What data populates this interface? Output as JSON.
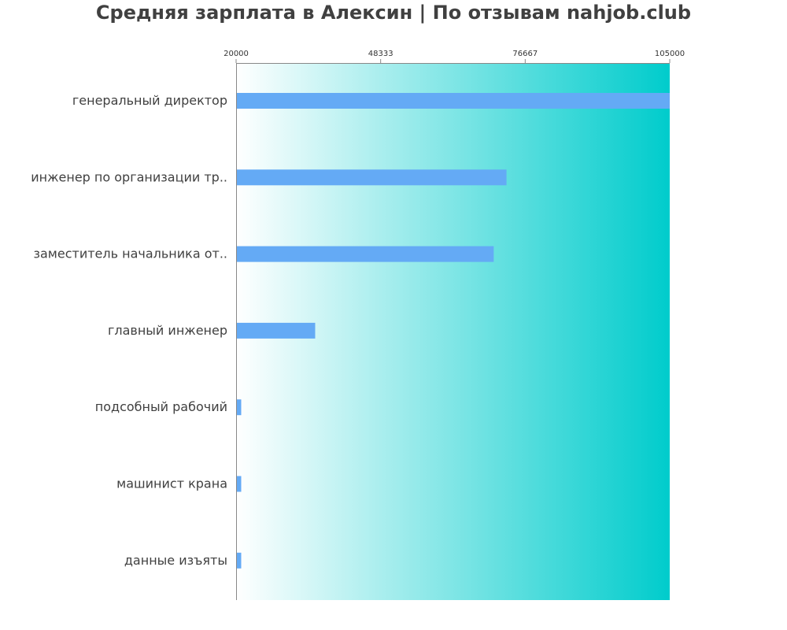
{
  "colors": {
    "bar": "#64aaf5",
    "gradient_start": "#ffffff",
    "gradient_end": "#00cccc",
    "axis": "#888888",
    "title": "#404040"
  },
  "chart_data": {
    "type": "bar",
    "orientation": "horizontal",
    "title": "Средняя зарплата в Алексин | По отзывам nahjob.club",
    "xlabel": "",
    "ylabel": "",
    "xlim": [
      20000,
      105000
    ],
    "x_ticks": [
      "20000",
      "48333",
      "76667",
      "105000"
    ],
    "grid": false,
    "legend": "none",
    "categories": [
      "генеральный директор",
      "инженер по организации тр..",
      "заместитель начальника от..",
      "главный инженер",
      "подсобный рабочий",
      "машинист крана",
      "данные изъяты"
    ],
    "values": [
      105000,
      73000,
      70500,
      35500,
      21000,
      21000,
      21000
    ]
  }
}
